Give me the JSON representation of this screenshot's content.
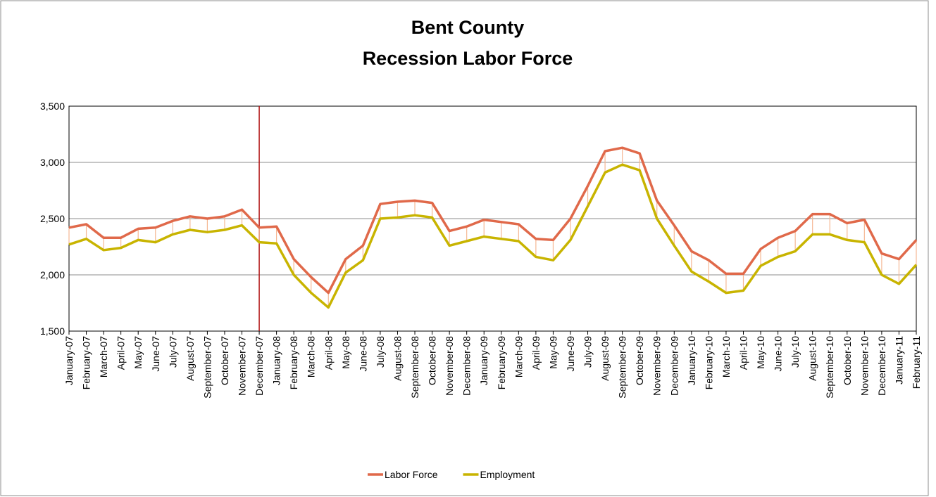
{
  "chart_data": {
    "type": "line",
    "title": [
      "Bent County",
      "Recession Labor Force"
    ],
    "categories": [
      "January-07",
      "February-07",
      "March-07",
      "April-07",
      "May-07",
      "June-07",
      "July-07",
      "August-07",
      "September-07",
      "October-07",
      "November-07",
      "December-07",
      "January-08",
      "February-08",
      "March-08",
      "April-08",
      "May-08",
      "June-08",
      "July-08",
      "August-08",
      "September-08",
      "October-08",
      "November-08",
      "December-08",
      "January-09",
      "February-09",
      "March-09",
      "April-09",
      "May-09",
      "June-09",
      "July-09",
      "August-09",
      "September-09",
      "October-09",
      "November-09",
      "December-09",
      "January-10",
      "February-10",
      "March-10",
      "April-10",
      "May-10",
      "June-10",
      "July-10",
      "August-10",
      "September-10",
      "October-10",
      "November-10",
      "December-10",
      "January-11",
      "February-11"
    ],
    "series": [
      {
        "name": "Labor Force",
        "color": "#e0694a",
        "values": [
          2420,
          2450,
          2330,
          2330,
          2410,
          2420,
          2480,
          2520,
          2500,
          2520,
          2580,
          2420,
          2430,
          2140,
          1980,
          1840,
          2140,
          2260,
          2630,
          2650,
          2660,
          2640,
          2390,
          2430,
          2490,
          2470,
          2450,
          2320,
          2310,
          2500,
          2790,
          3100,
          3130,
          3080,
          2660,
          2440,
          2210,
          2130,
          2010,
          2010,
          2230,
          2330,
          2390,
          2540,
          2540,
          2460,
          2490,
          2190,
          2140,
          2310
        ]
      },
      {
        "name": "Employment",
        "color": "#c8b400",
        "values": [
          2270,
          2320,
          2220,
          2240,
          2310,
          2290,
          2360,
          2400,
          2380,
          2400,
          2440,
          2290,
          2280,
          2000,
          1840,
          1710,
          2020,
          2130,
          2500,
          2510,
          2530,
          2510,
          2260,
          2300,
          2340,
          2320,
          2300,
          2160,
          2130,
          2310,
          2610,
          2910,
          2980,
          2930,
          2500,
          2260,
          2030,
          1940,
          1840,
          1860,
          2080,
          2160,
          2210,
          2360,
          2360,
          2310,
          2290,
          2000,
          1920,
          2090
        ]
      }
    ],
    "ylim": [
      1500,
      3500
    ],
    "yticks": [
      {
        "value": 1500,
        "label": "1,500"
      },
      {
        "value": 2000,
        "label": "2,000"
      },
      {
        "value": 2500,
        "label": "2,500"
      },
      {
        "value": 3000,
        "label": "3,000"
      },
      {
        "value": 3500,
        "label": "3,500"
      }
    ],
    "grid": true,
    "drop_lines": {
      "color": "#f5b894"
    },
    "reference_line": {
      "category_index": 11,
      "color": "#b01010"
    },
    "legend": "bottom"
  }
}
